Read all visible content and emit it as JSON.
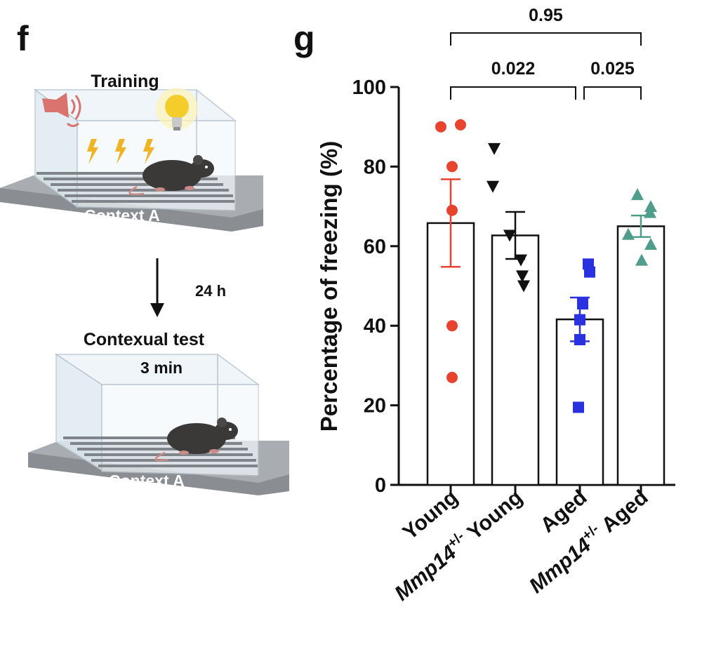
{
  "panels": {
    "f_letter": "f",
    "g_letter": "g"
  },
  "schematic": {
    "training_title": "Training",
    "context_label_top": "Context A",
    "interval": "24 h",
    "test_title": "Contexual test",
    "test_duration": "3 min",
    "context_label_bottom": "Context A"
  },
  "chart_data": {
    "type": "bar",
    "categories": [
      "Young",
      "Mmp14+/- Young",
      "Aged",
      "Mmp14+/- Aged"
    ],
    "category_labels": [
      {
        "italic": "",
        "sup": "",
        "rest": "Young"
      },
      {
        "italic": "Mmp14",
        "sup": "+/-",
        "rest": " Young"
      },
      {
        "italic": "",
        "sup": "",
        "rest": "Aged"
      },
      {
        "italic": "Mmp14",
        "sup": "+/-",
        "rest": " Aged"
      }
    ],
    "series": [
      {
        "values": [
          65.8,
          62.7,
          41.6,
          65.0
        ]
      }
    ],
    "sem": [
      11.0,
      5.9,
      5.5,
      2.7
    ],
    "points": [
      [
        90,
        90.5,
        80,
        69,
        40,
        27
      ],
      [
        84.5,
        75,
        62.7,
        56.5,
        52.5,
        50
      ],
      [
        55.5,
        53.5,
        45.5,
        41.5,
        36.5,
        19.5
      ],
      [
        73,
        70,
        68.5,
        63,
        60.5,
        56.5
      ]
    ],
    "markers": [
      "circle",
      "triangle-down",
      "square",
      "triangle-up"
    ],
    "colors": [
      "#e8432e",
      "#111111",
      "#2a32e0",
      "#4f9e8c"
    ],
    "ylabel": "Percentage of freezing (%)",
    "ylim": [
      0,
      100
    ],
    "yticks": [
      0,
      20,
      40,
      60,
      80,
      100
    ],
    "comparisons": [
      {
        "from": 0,
        "to": 2,
        "p": "0.022"
      },
      {
        "from": 2,
        "to": 3,
        "p": "0.025"
      },
      {
        "from": 0,
        "to": 3,
        "p": "0.95"
      }
    ],
    "grid": false
  }
}
